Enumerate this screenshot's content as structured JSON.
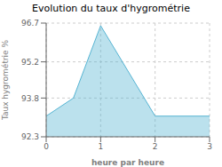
{
  "chart_data": {
    "type": "area",
    "title": "Evolution du taux d'hygrométrie",
    "xlabel": "heure par heure",
    "ylabel": "Taux hygrométrie %",
    "x": [
      0,
      0.5,
      1,
      2,
      2,
      3
    ],
    "values": [
      93.1,
      93.8,
      96.6,
      93.1,
      93.1,
      93.1
    ],
    "color": "#56b4d3",
    "xlim": [
      0,
      3
    ],
    "ylim": [
      92.3,
      96.7
    ],
    "xticks": [
      0,
      1,
      2,
      3
    ],
    "yticks": [
      92.3,
      93.8,
      95.2,
      96.7
    ],
    "grid": true
  }
}
